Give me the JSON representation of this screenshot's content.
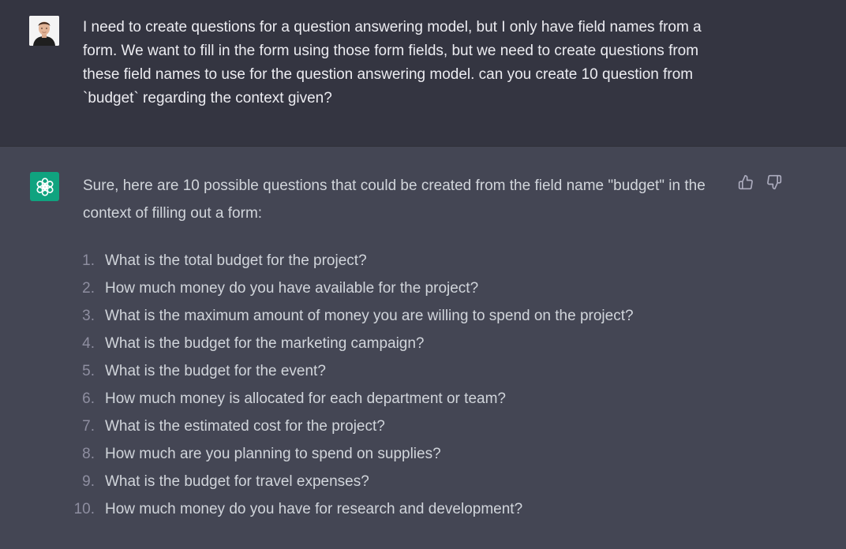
{
  "user_message": {
    "text": "I need to create questions for a question answering model, but I only have field names from a form. We want to fill in the form using those form fields, but we need to create questions from these field names to use for the question answering model. can you create 10 question from `budget` regarding the context given?"
  },
  "assistant_message": {
    "intro": "Sure, here are 10 possible questions that could be created from the field name \"budget\" in the context of filling out a form:",
    "items": [
      {
        "num": "1.",
        "text": "What is the total budget for the project?"
      },
      {
        "num": "2.",
        "text": "How much money do you have available for the project?"
      },
      {
        "num": "3.",
        "text": "What is the maximum amount of money you are willing to spend on the project?"
      },
      {
        "num": "4.",
        "text": "What is the budget for the marketing campaign?"
      },
      {
        "num": "5.",
        "text": "What is the budget for the event?"
      },
      {
        "num": "6.",
        "text": "How much money is allocated for each department or team?"
      },
      {
        "num": "7.",
        "text": "What is the estimated cost for the project?"
      },
      {
        "num": "8.",
        "text": "How much are you planning to spend on supplies?"
      },
      {
        "num": "9.",
        "text": "What is the budget for travel expenses?"
      },
      {
        "num": "10.",
        "text": "How much money do you have for research and development?"
      }
    ]
  },
  "icons": {
    "user_avatar": "user-avatar-photo",
    "assistant_avatar": "openai-logo-icon",
    "feedback_up": "thumbs-up-icon",
    "feedback_down": "thumbs-down-icon"
  },
  "colors": {
    "user_bg": "#343541",
    "assistant_bg": "#444654",
    "brand": "#10a37f",
    "text_primary": "#ececf1",
    "text_secondary": "#d1d5db",
    "list_number": "#8e8ea0"
  }
}
